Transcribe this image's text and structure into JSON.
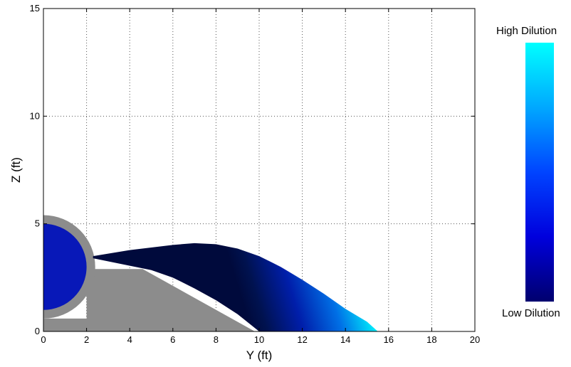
{
  "chart_data": {
    "type": "area",
    "title": "",
    "xlabel": "Y (ft)",
    "ylabel": "Z (ft)",
    "xlim": [
      0,
      20
    ],
    "ylim": [
      0,
      15
    ],
    "xticks": [
      0,
      2,
      4,
      6,
      8,
      10,
      12,
      14,
      16,
      18,
      20
    ],
    "yticks": [
      0,
      5,
      10,
      15
    ],
    "grid": true,
    "pipe": {
      "center": [
        0,
        3
      ],
      "outer_radius": 2.4,
      "inner_radius": 2.0
    },
    "pipe_inner_color": "#0818b8",
    "pipe_wall_color": "#8c8c8c",
    "ground": {
      "color": "#8c8c8c",
      "outline": [
        [
          0,
          0
        ],
        [
          9.8,
          0
        ],
        [
          4.6,
          2.9
        ],
        [
          2.0,
          2.9
        ],
        [
          2.0,
          0.6
        ],
        [
          0,
          0.6
        ]
      ]
    },
    "plume": {
      "upper_edge": [
        [
          2.3,
          3.5
        ],
        [
          4,
          3.78
        ],
        [
          6,
          4.02
        ],
        [
          7,
          4.1
        ],
        [
          8,
          4.05
        ],
        [
          9,
          3.85
        ],
        [
          10,
          3.5
        ],
        [
          11,
          3.0
        ],
        [
          12,
          2.4
        ],
        [
          13,
          1.75
        ],
        [
          14,
          1.05
        ],
        [
          15,
          0.45
        ],
        [
          15.5,
          0
        ]
      ],
      "lower_edge": [
        [
          2.3,
          3.4
        ],
        [
          4,
          3.05
        ],
        [
          5,
          2.85
        ],
        [
          6,
          2.5
        ],
        [
          7,
          2.0
        ],
        [
          8,
          1.45
        ],
        [
          9,
          0.8
        ],
        [
          10,
          0
        ]
      ],
      "color_scale": "dilution"
    },
    "colorbar": {
      "max_label": "High Dilution",
      "min_label": "Low Dilution",
      "colors": [
        "#00ffff",
        "#00a8ff",
        "#0044ff",
        "#0000dd",
        "#00006e"
      ]
    }
  }
}
